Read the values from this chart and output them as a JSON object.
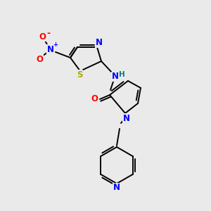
{
  "background_color": "#eaeaea",
  "bond_color": "#000000",
  "atom_colors": {
    "N": "#0000ff",
    "O": "#ff0000",
    "S": "#aaaa00",
    "H": "#008080",
    "C": "#000000"
  },
  "lw": 1.4,
  "fs": 8.5,
  "fs_small": 7.5
}
